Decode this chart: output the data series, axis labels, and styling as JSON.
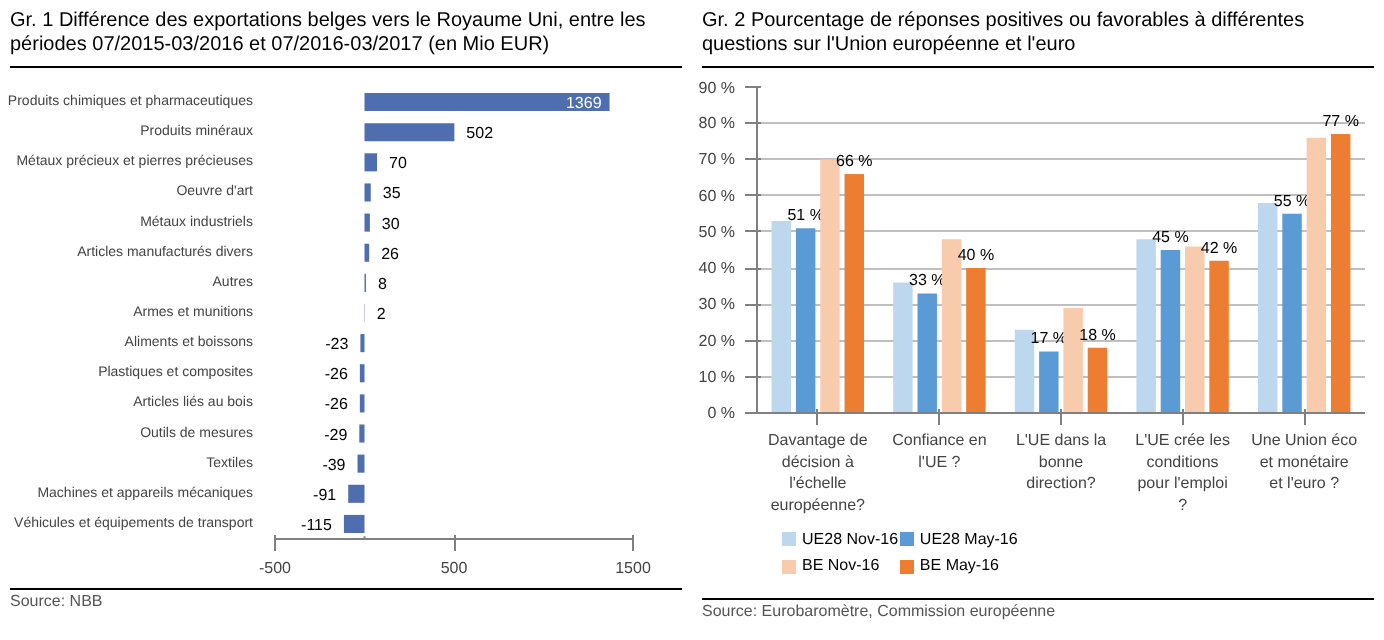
{
  "chart_data": [
    {
      "type": "bar",
      "orientation": "horizontal",
      "title": "Gr. 1    Différence des exportations belges vers le Royaume Uni, entre les périodes 07/2015-03/2016 et 07/2016-03/2017 (en Mio EUR)",
      "categories": [
        "Produits chimiques et pharmaceutiques",
        "Produits minéraux",
        "Métaux précieux et pierres précieuses",
        "Oeuvre d'art",
        "Métaux industriels",
        "Articles manufacturés divers",
        "Autres",
        "Armes et munitions",
        "Aliments et boissons",
        "Plastiques et composites",
        "Articles liés au bois",
        "Outils de mesures",
        "Textiles",
        "Machines et appareils mécaniques",
        "Véhicules et équipements de transport"
      ],
      "values": [
        1369,
        502,
        70,
        35,
        30,
        26,
        8,
        2,
        -23,
        -26,
        -26,
        -29,
        -39,
        -91,
        -115
      ],
      "color": "#4f6eb0",
      "data_labels": true,
      "xlim": [
        -500,
        1500
      ],
      "xticks": [
        -500,
        500,
        1500
      ],
      "grid": false,
      "annotations": [
        "Source: NBB"
      ]
    },
    {
      "type": "bar",
      "title": "Gr. 2    Pourcentage de réponses positives ou favorables à différentes questions sur l'Union européenne et l'euro",
      "categories": [
        "Davantage de décision à l'échelle européenne?",
        "Confiance en l'UE ?",
        "L'UE dans la bonne direction?",
        "L'UE crée les conditions pour l'emploi ?",
        "Une Union éco et monétaire et l'euro ?"
      ],
      "series": [
        {
          "name": "UE28 Nov-16",
          "color": "#bdd7ee",
          "values": [
            53,
            36,
            23,
            48,
            58
          ]
        },
        {
          "name": "UE28 May-16",
          "color": "#5b9bd5",
          "values": [
            51,
            33,
            17,
            45,
            55
          ],
          "value_labels": [
            "51 %",
            "33 %",
            "17 %",
            "45 %",
            "55 %"
          ]
        },
        {
          "name": "BE Nov-16",
          "color": "#f8cbad",
          "values": [
            70,
            48,
            29,
            46,
            76
          ]
        },
        {
          "name": "BE May-16",
          "color": "#ed7d31",
          "values": [
            66,
            40,
            18,
            42,
            77
          ],
          "value_labels": [
            "66 %",
            "40 %",
            "18 %",
            "42 %",
            "77 %"
          ]
        }
      ],
      "ylim": [
        0,
        90
      ],
      "yticks": [
        {
          "value": 0,
          "label": "0 %"
        },
        {
          "value": 10,
          "label": "10 %"
        },
        {
          "value": 20,
          "label": "20 %"
        },
        {
          "value": 30,
          "label": "30 %"
        },
        {
          "value": 40,
          "label": "40 %"
        },
        {
          "value": 50,
          "label": "50 %"
        },
        {
          "value": 60,
          "label": "60 %"
        },
        {
          "value": 70,
          "label": "70 %"
        },
        {
          "value": 80,
          "label": "80 %"
        },
        {
          "value": 90,
          "label": "90 %"
        }
      ],
      "grid": "y",
      "legend": "bottom",
      "annotations": [
        "Source: Eurobaromètre, Commission européenne"
      ]
    }
  ]
}
